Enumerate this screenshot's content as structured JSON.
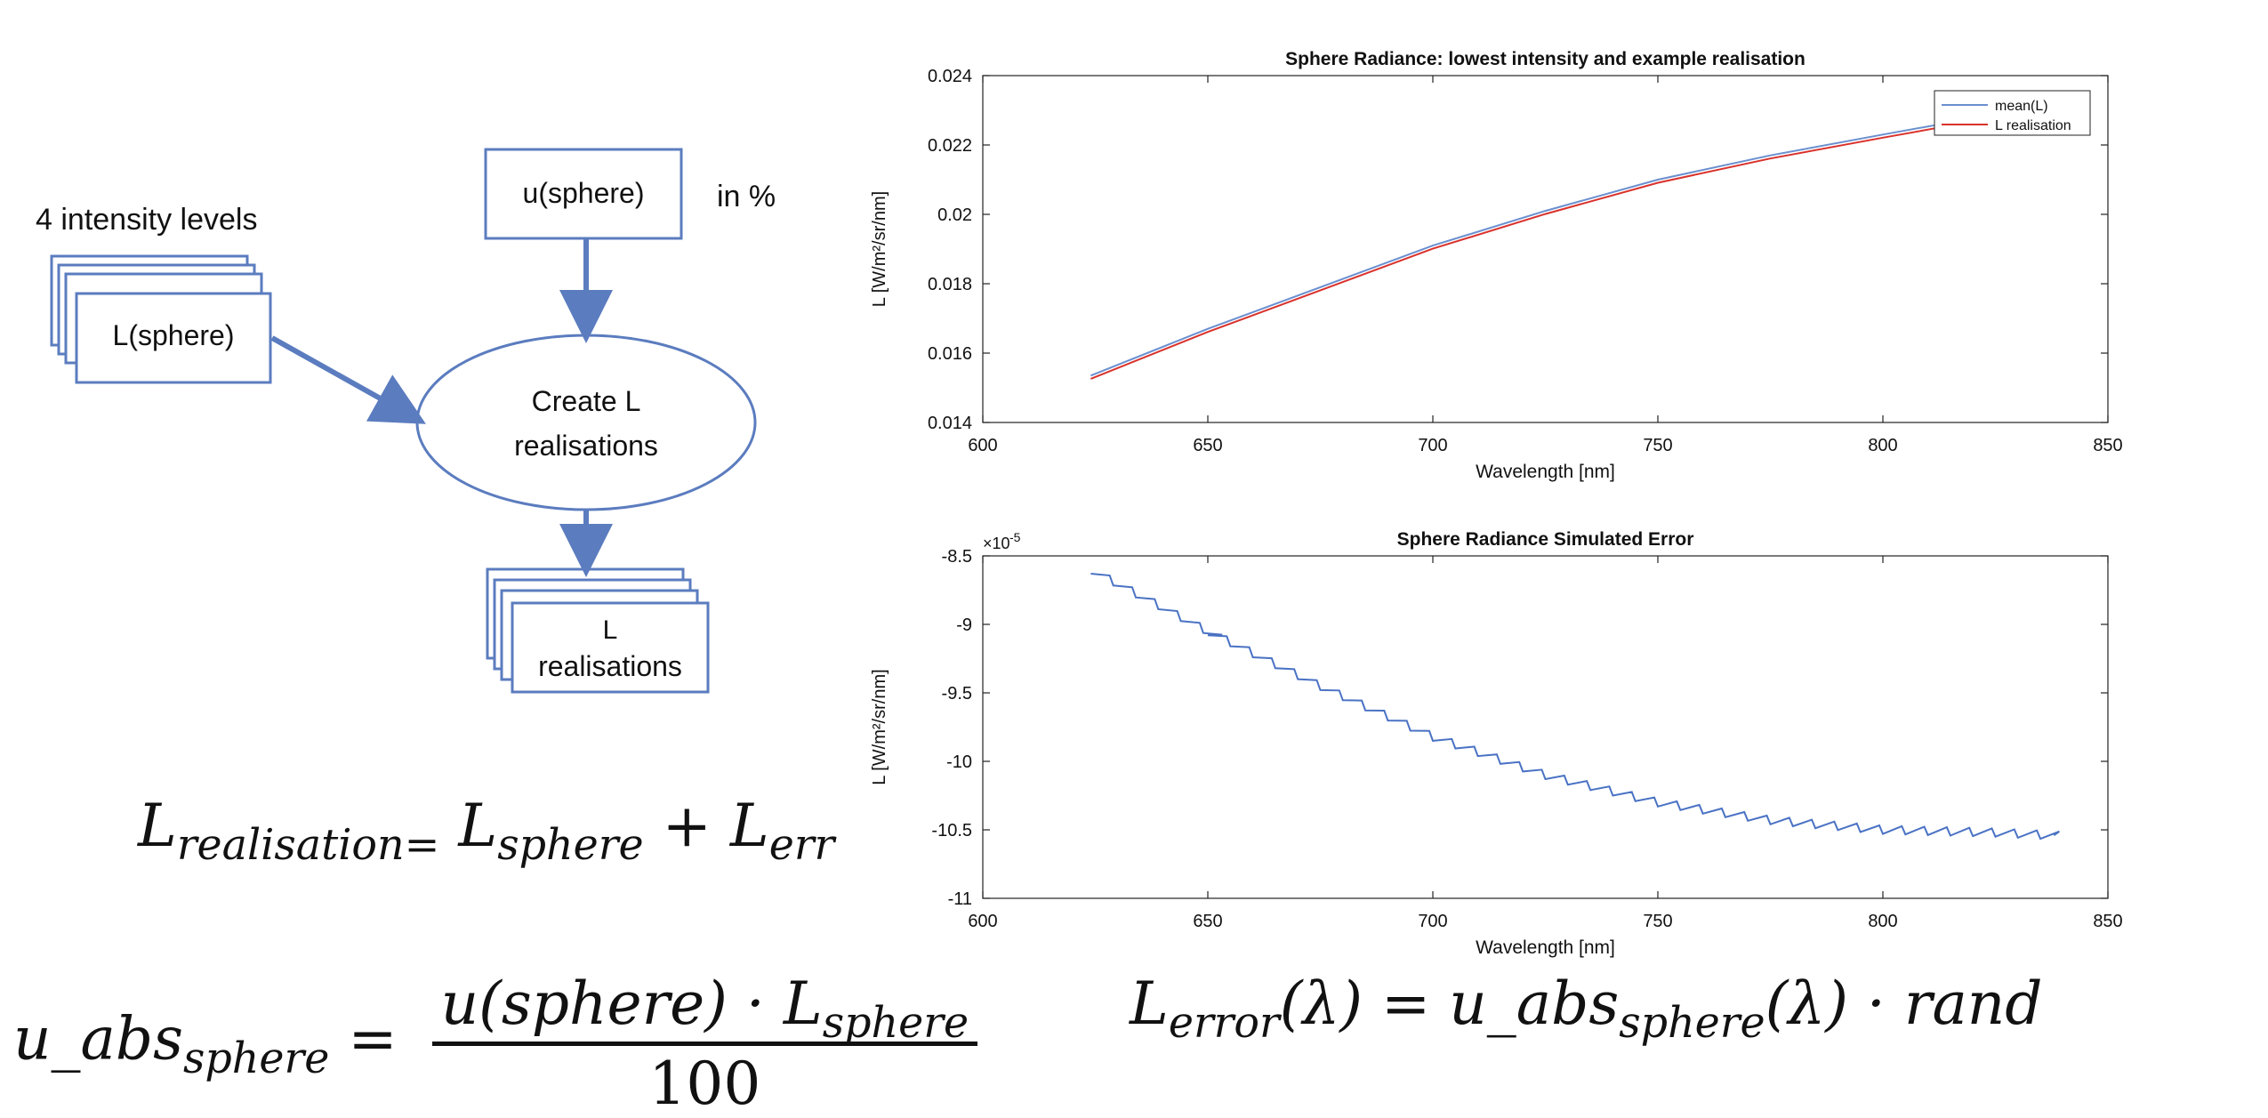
{
  "diagram": {
    "intensity_label": "4 intensity levels",
    "l_sphere": "L(sphere)",
    "u_sphere": "u(sphere)",
    "in_percent": "in %",
    "create_line1": "Create L",
    "create_line2": "realisations",
    "out_line1": "L",
    "out_line2": "realisations",
    "box_stroke": "#5b7cbf",
    "arrow_color": "#5b7cbf"
  },
  "equations": {
    "realisation": {
      "lhs": "L",
      "lhs_sub": "realisation=",
      "t1": "L",
      "t1_sub": "sphere",
      "plus": "+",
      "t2": "L",
      "t2_sub": "err"
    },
    "uabs": {
      "lhs": "u_abs",
      "lhs_sub": "sphere",
      "eq": "=",
      "num": "u(sphere) · L",
      "num_sub": "sphere",
      "den": "100"
    },
    "error": {
      "lhs": "L",
      "lhs_sub": "error",
      "arg": "(λ) = u_abs",
      "mid_sub": "sphere",
      "rhs": "(λ) · rand"
    }
  },
  "chart_data": [
    {
      "type": "line",
      "title": "Sphere Radiance: lowest intensity and example realisation",
      "xlabel": "Wavelength [nm]",
      "ylabel": "L [W/m²/sr/nm]",
      "xlim": [
        600,
        850
      ],
      "ylim": [
        0.014,
        0.024
      ],
      "xticks": [
        "600",
        "650",
        "700",
        "750",
        "800",
        "850"
      ],
      "yticks": [
        "0.014",
        "0.016",
        "0.018",
        "0.02",
        "0.022",
        "0.024"
      ],
      "legend_position": "top-right",
      "grid": false,
      "series": [
        {
          "name": "mean(L)",
          "color": "#6a8fcf",
          "x": [
            624,
            650,
            675,
            700,
            725,
            750,
            775,
            800,
            815
          ],
          "y": [
            0.01535,
            0.0167,
            0.0179,
            0.0191,
            0.0201,
            0.021,
            0.0217,
            0.0223,
            0.02265
          ]
        },
        {
          "name": "L realisation",
          "color": "#d9312b",
          "x": [
            624,
            650,
            675,
            700,
            725,
            750,
            775,
            800,
            815
          ],
          "y": [
            0.01526,
            0.01661,
            0.01781,
            0.01901,
            0.02001,
            0.02091,
            0.02161,
            0.02221,
            0.02256
          ]
        }
      ]
    },
    {
      "type": "line",
      "title": "Sphere Radiance Simulated Error",
      "xlabel": "Wavelength [nm]",
      "ylabel": "L [W/m²/sr/nm]",
      "y_multiplier": "×10",
      "y_exponent": "-5",
      "xlim": [
        600,
        850
      ],
      "ylim": [
        -11,
        -8.5
      ],
      "xticks": [
        "600",
        "650",
        "700",
        "750",
        "800",
        "850"
      ],
      "yticks": [
        "-8.5",
        "-9",
        "-9.5",
        "-10",
        "-10.5",
        "-11"
      ],
      "grid": false,
      "series": [
        {
          "name": "",
          "color": "#4a72c4",
          "x": [
            624,
            650,
            675,
            700,
            725,
            750,
            775,
            800,
            825,
            838
          ],
          "y": [
            -8.6,
            -9.05,
            -9.45,
            -9.82,
            -10.1,
            -10.3,
            -10.43,
            -10.5,
            -10.52,
            -10.54
          ],
          "sawtooth_amplitude": 0.06
        }
      ]
    }
  ]
}
